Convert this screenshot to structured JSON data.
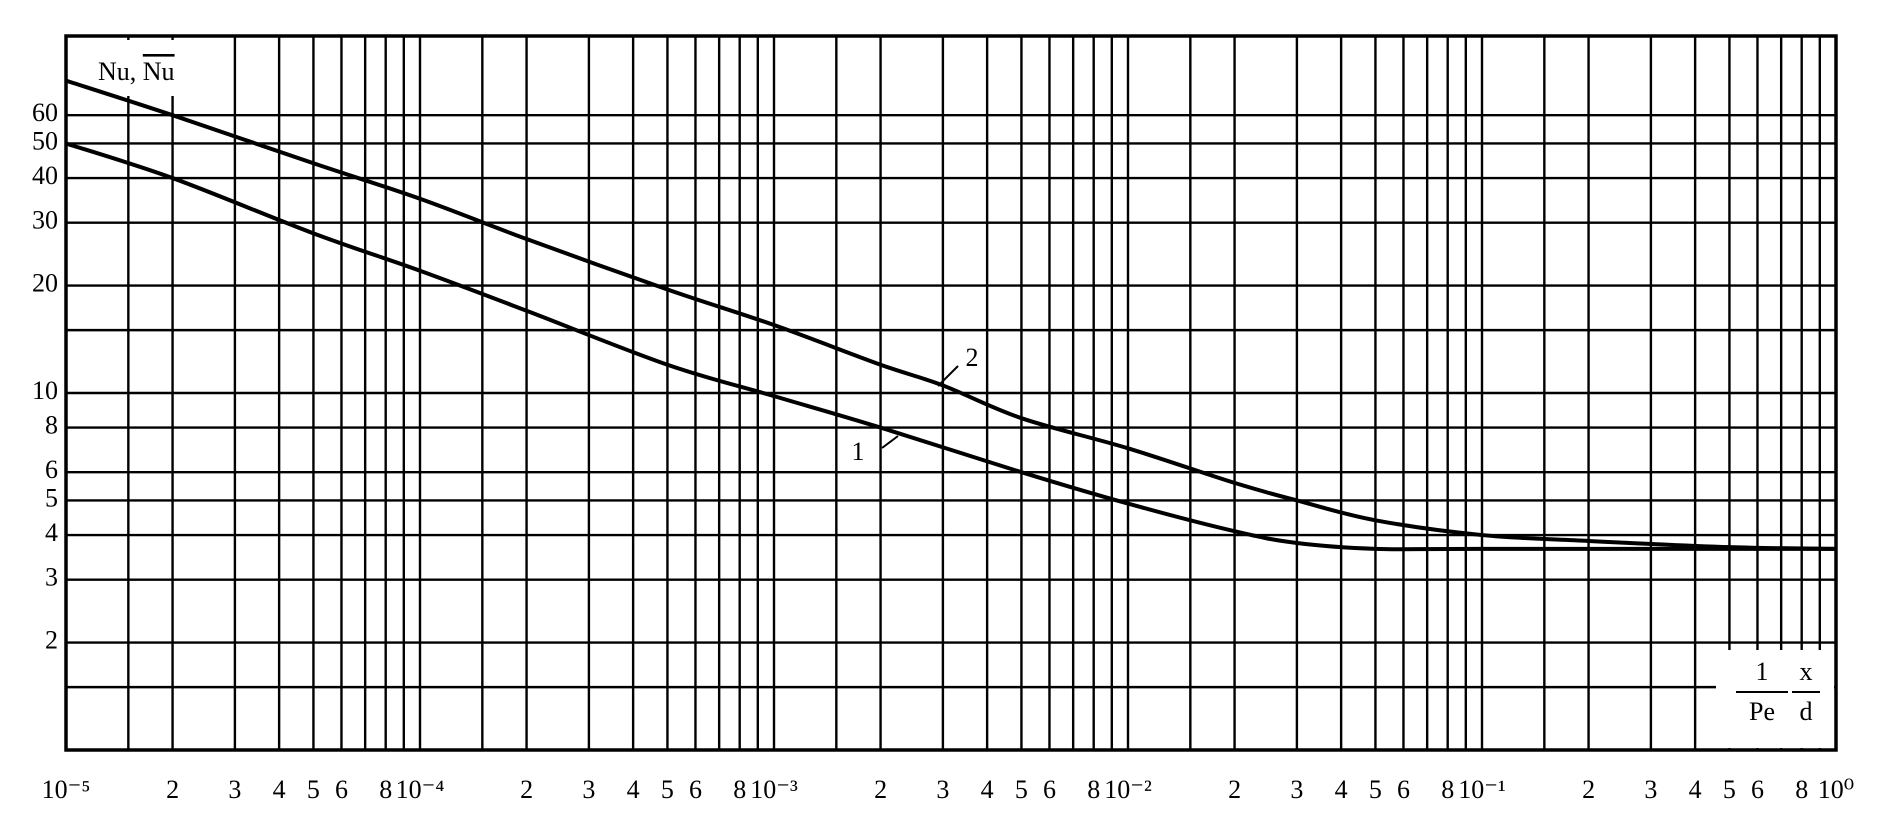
{
  "chart_data": {
    "type": "line",
    "ylabel": [
      "Nu,",
      "Nu"
    ],
    "xlabel": {
      "num1": "1",
      "den1": "Pe",
      "num2": "x",
      "den2": "d"
    },
    "xlog": true,
    "ylog": true,
    "grid": true,
    "xlim": [
      1e-05,
      1
    ],
    "ylim": [
      1,
      100
    ],
    "xticks": [
      {
        "value": 1e-05,
        "label": "10⁻⁵"
      },
      {
        "value": 2e-05,
        "label": "2"
      },
      {
        "value": 3e-05,
        "label": "3"
      },
      {
        "value": 4e-05,
        "label": "4"
      },
      {
        "value": 5e-05,
        "label": "5"
      },
      {
        "value": 6e-05,
        "label": "6"
      },
      {
        "value": 8e-05,
        "label": "8"
      },
      {
        "value": 0.0001,
        "label": "10⁻⁴"
      },
      {
        "value": 0.0002,
        "label": "2"
      },
      {
        "value": 0.0003,
        "label": "3"
      },
      {
        "value": 0.0004,
        "label": "4"
      },
      {
        "value": 0.0005,
        "label": "5"
      },
      {
        "value": 0.0006,
        "label": "6"
      },
      {
        "value": 0.0008,
        "label": "8"
      },
      {
        "value": 0.001,
        "label": "10⁻³"
      },
      {
        "value": 0.002,
        "label": "2"
      },
      {
        "value": 0.003,
        "label": "3"
      },
      {
        "value": 0.004,
        "label": "4"
      },
      {
        "value": 0.005,
        "label": "5"
      },
      {
        "value": 0.006,
        "label": "6"
      },
      {
        "value": 0.008,
        "label": "8"
      },
      {
        "value": 0.01,
        "label": "10⁻²"
      },
      {
        "value": 0.02,
        "label": "2"
      },
      {
        "value": 0.03,
        "label": "3"
      },
      {
        "value": 0.04,
        "label": "4"
      },
      {
        "value": 0.05,
        "label": "5"
      },
      {
        "value": 0.06,
        "label": "6"
      },
      {
        "value": 0.08,
        "label": "8"
      },
      {
        "value": 0.1,
        "label": "10⁻¹"
      },
      {
        "value": 0.2,
        "label": "2"
      },
      {
        "value": 0.3,
        "label": "3"
      },
      {
        "value": 0.4,
        "label": "4"
      },
      {
        "value": 0.5,
        "label": "5"
      },
      {
        "value": 0.6,
        "label": "6"
      },
      {
        "value": 0.8,
        "label": "8"
      },
      {
        "value": 1,
        "label": "10⁰"
      }
    ],
    "x_minor_grid": [
      1.5e-05,
      7e-05,
      9e-05,
      0.00015,
      0.0007,
      0.0009,
      0.0015,
      0.007,
      0.009,
      0.015,
      0.07,
      0.09,
      0.15,
      0.7,
      0.9
    ],
    "yticks": [
      2,
      3,
      4,
      5,
      6,
      8,
      10,
      20,
      30,
      40,
      50,
      60
    ],
    "y_minor_grid": [
      1.5,
      15
    ],
    "series": [
      {
        "name": "1",
        "color": "#000000",
        "x": [
          1e-05,
          2e-05,
          5e-05,
          0.0001,
          0.0002,
          0.0005,
          0.001,
          0.002,
          0.005,
          0.01,
          0.02,
          0.03,
          0.05,
          0.1,
          1
        ],
        "values": [
          50,
          40,
          28,
          22,
          17,
          12,
          9.8,
          8,
          6,
          4.9,
          4.1,
          3.8,
          3.66,
          3.66,
          3.66
        ]
      },
      {
        "name": "2",
        "color": "#000000",
        "x": [
          1e-05,
          2e-05,
          5e-05,
          0.0001,
          0.0002,
          0.0005,
          0.001,
          0.002,
          0.003,
          0.005,
          0.01,
          0.02,
          0.03,
          0.05,
          0.1,
          0.2,
          0.5,
          1
        ],
        "values": [
          75,
          60,
          44,
          35,
          27,
          19.5,
          15.5,
          12,
          10.5,
          8.5,
          7,
          5.6,
          5,
          4.4,
          4.0,
          3.85,
          3.7,
          3.66
        ]
      }
    ]
  }
}
